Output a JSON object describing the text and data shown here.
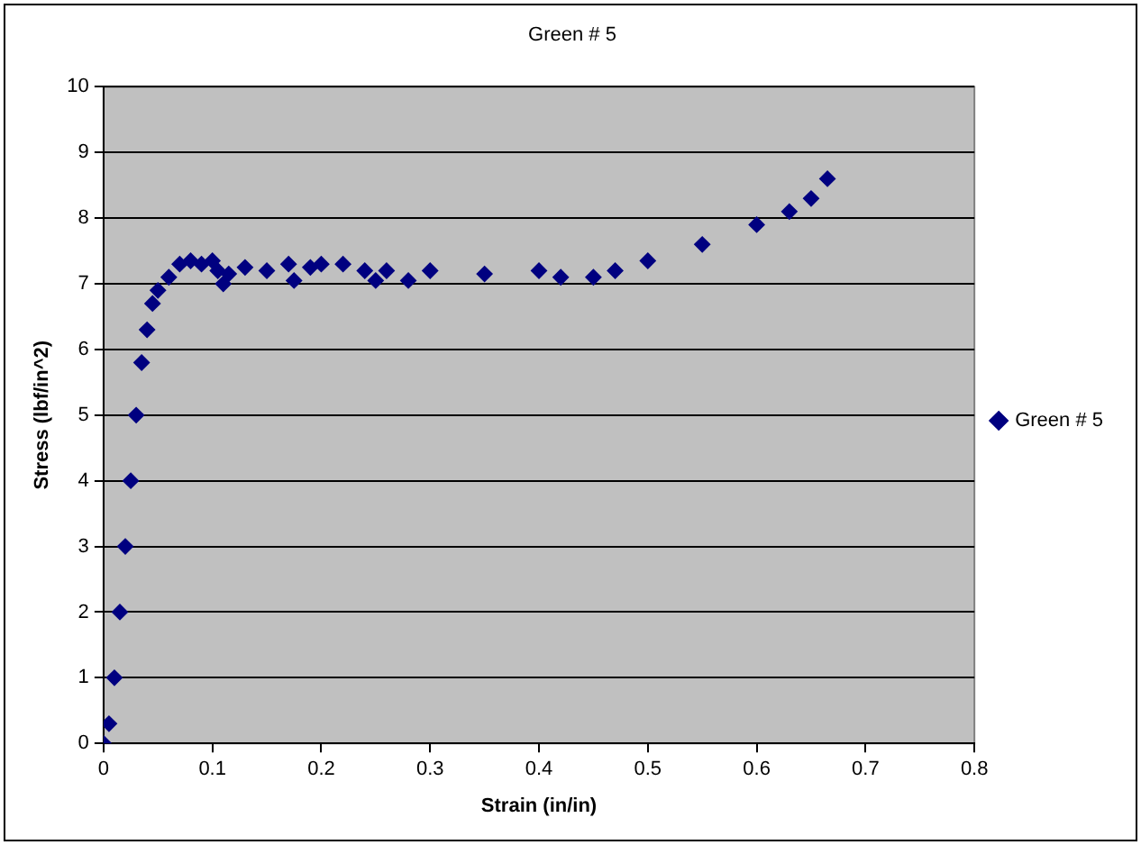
{
  "chart_data": {
    "type": "scatter",
    "title": "Green # 5",
    "xlabel": "Strain (in/in)",
    "ylabel": "Stress (lbf/in^2)",
    "xlim": [
      0,
      0.8
    ],
    "xticks": [
      0,
      0.1,
      0.2,
      0.3,
      0.4,
      0.5,
      0.6,
      0.7,
      0.8
    ],
    "ylim": [
      0,
      10
    ],
    "yticks": [
      0,
      1,
      2,
      3,
      4,
      5,
      6,
      7,
      8,
      9,
      10
    ],
    "grid": "y",
    "legend": "right",
    "marker": "diamond",
    "series": [
      {
        "name": "Green # 5",
        "color": "#000080",
        "x": [
          0,
          0.005,
          0.01,
          0.015,
          0.02,
          0.025,
          0.03,
          0.035,
          0.04,
          0.045,
          0.05,
          0.06,
          0.07,
          0.08,
          0.09,
          0.1,
          0.105,
          0.11,
          0.115,
          0.13,
          0.15,
          0.17,
          0.175,
          0.19,
          0.2,
          0.22,
          0.24,
          0.25,
          0.26,
          0.28,
          0.3,
          0.35,
          0.4,
          0.42,
          0.45,
          0.47,
          0.5,
          0.55,
          0.6,
          0.63,
          0.65,
          0.665
        ],
        "values": [
          0,
          0.3,
          1,
          2,
          3,
          4,
          5,
          5.8,
          6.3,
          6.7,
          6.9,
          7.1,
          7.3,
          7.35,
          7.3,
          7.35,
          7.2,
          7,
          7.15,
          7.25,
          7.2,
          7.3,
          7.05,
          7.25,
          7.3,
          7.3,
          7.2,
          7.05,
          7.2,
          7.05,
          7.2,
          7.15,
          7.2,
          7.1,
          7.1,
          7.2,
          7.35,
          7.6,
          7.9,
          8.1,
          8.3,
          8.6
        ]
      }
    ]
  }
}
